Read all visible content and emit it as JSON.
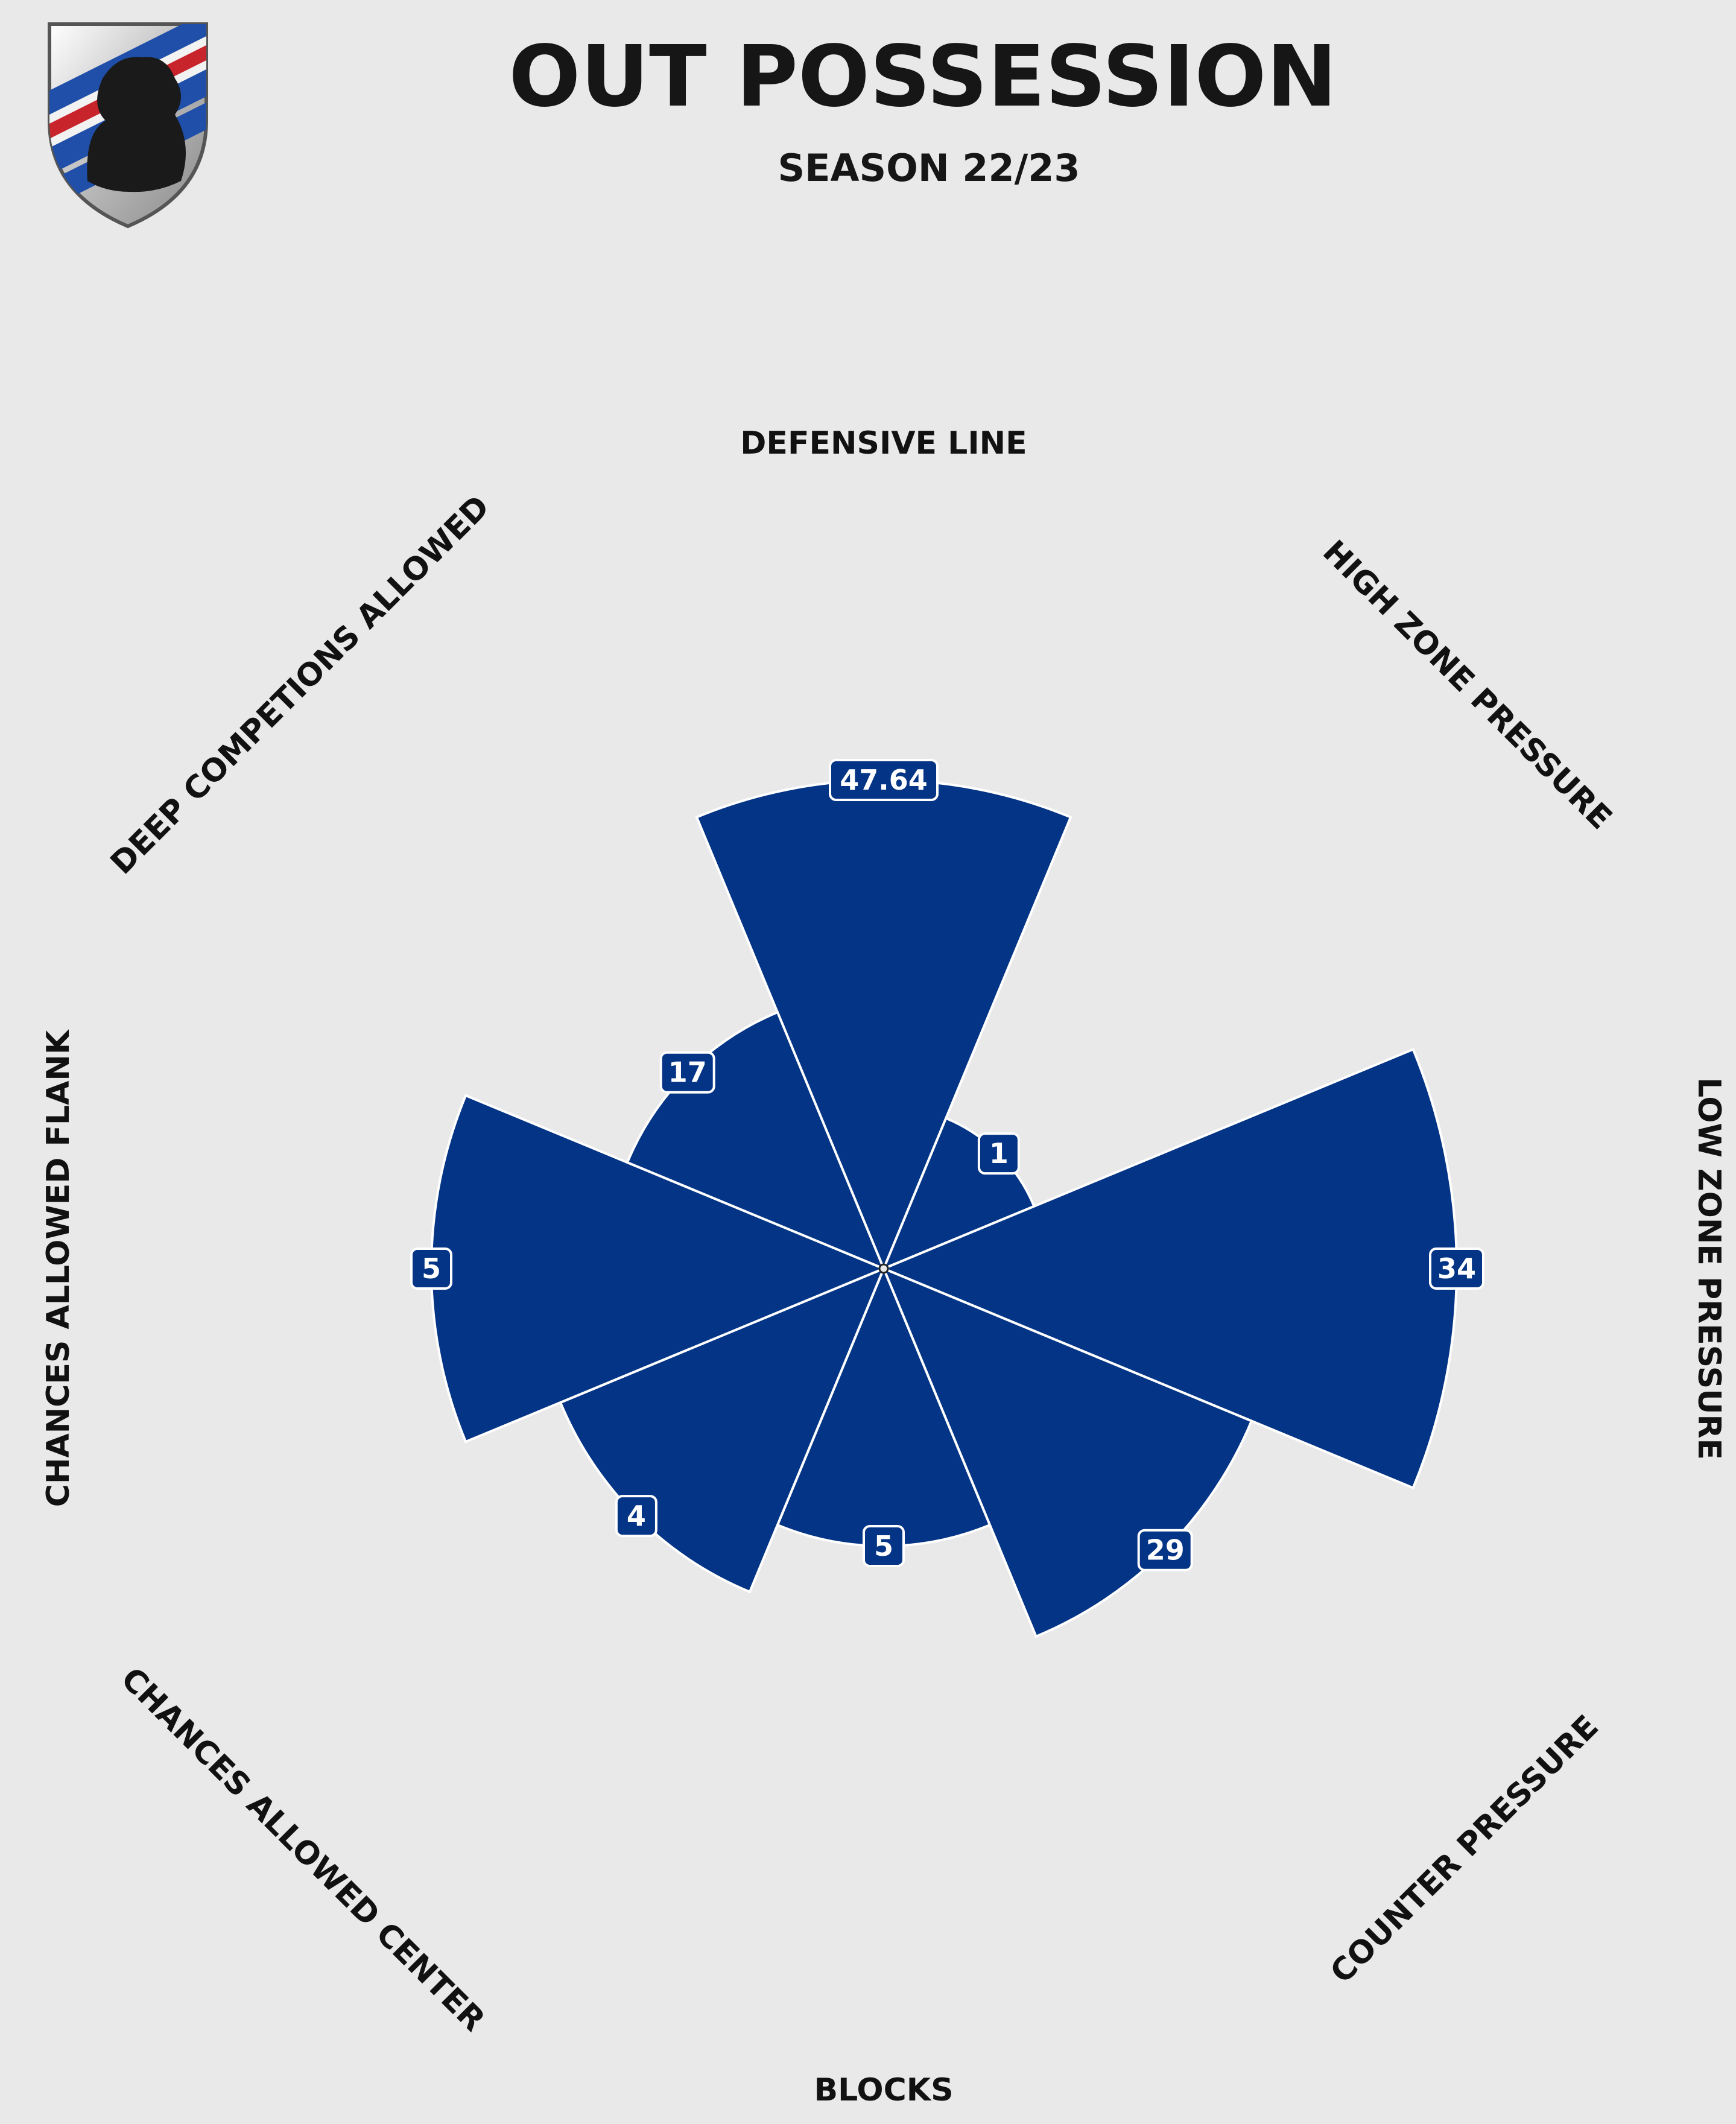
{
  "header": {
    "title": "OUT POSSESSION",
    "subtitle": "SEASON 22/23"
  },
  "logo": {
    "icon": "club-shield-icon",
    "stripe_blue": "#1f4fa8",
    "stripe_red": "#c8242c",
    "stripe_white": "#f2f2f2"
  },
  "colors": {
    "bar": "#043485",
    "separator": "#ffffff",
    "background": "#e9e9e9",
    "label_box_border": "#ffffff"
  },
  "chart_data": {
    "type": "polar-bar",
    "categories": [
      "DEFENSIVE LINE",
      "HIGH ZONE PRESSURE",
      "LOW ZONE PRESSURE",
      "COUNTER PRESSURE",
      "BLOCKS",
      "CHANCES ALLOWED CENTER",
      "CHANCES ALLOWED FLANK",
      "DEEP COMPETIONS ALLOWED"
    ],
    "values": [
      "47.64",
      "1",
      "34",
      "29",
      "5",
      "4",
      "5",
      "17"
    ],
    "relative_radius": [
      0.81,
      0.27,
      0.95,
      0.66,
      0.46,
      0.58,
      0.75,
      0.46
    ],
    "start_angle": "top",
    "direction": "clockwise",
    "grid": false,
    "legend": "none"
  }
}
